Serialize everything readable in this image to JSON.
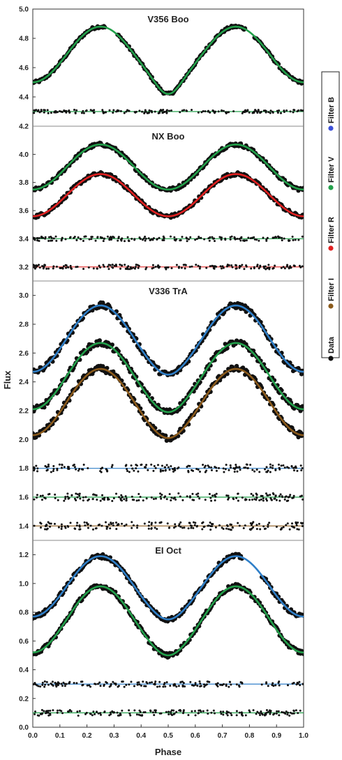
{
  "chart_data": {
    "type": "scatter",
    "xlabel": "Phase",
    "ylabel": "Flux",
    "xlim": [
      0.0,
      1.0
    ],
    "x_ticks": [
      "0.0",
      "0.1",
      "0.2",
      "0.3",
      "0.4",
      "0.5",
      "0.6",
      "0.7",
      "0.8",
      "0.9",
      "1.0"
    ],
    "grid": false,
    "legend": {
      "placement": "right, rotated vertical",
      "entries": [
        {
          "label": "Filter B",
          "color": "#3b4fd8"
        },
        {
          "label": "Filter V",
          "color": "#22a04a"
        },
        {
          "label": "Filter R",
          "color": "#e02020"
        },
        {
          "label": "Filter I",
          "color": "#8b5a1b"
        },
        {
          "label": "Data",
          "color": "#111111"
        }
      ]
    },
    "panels": [
      {
        "title": "V356 Boo",
        "ylim": [
          4.2,
          5.0
        ],
        "y_ticks": [
          "4.2",
          "4.4",
          "4.6",
          "4.8",
          "5.0"
        ],
        "series": [
          {
            "filter": "V",
            "kind": "light_curve",
            "mean": 4.69,
            "amplitude": 0.19,
            "primary_depth": 0.08,
            "color": "#22a04a",
            "gaps": [
              [
                0.27,
                0.31
              ],
              [
                0.785,
                0.815
              ]
            ]
          },
          {
            "filter": "V",
            "kind": "residual",
            "mean": 4.3,
            "color": "#22a04a"
          }
        ]
      },
      {
        "title": "NX Boo",
        "ylim": [
          3.1,
          4.2
        ],
        "y_ticks": [
          "3.2",
          "3.4",
          "3.6",
          "3.8",
          "4.0"
        ],
        "series": [
          {
            "filter": "V",
            "kind": "light_curve",
            "mean": 3.91,
            "amplitude": 0.16,
            "primary_depth": 0.0,
            "color": "#22a04a"
          },
          {
            "filter": "R",
            "kind": "light_curve",
            "mean": 3.71,
            "amplitude": 0.15,
            "primary_depth": 0.0,
            "color": "#e02020"
          },
          {
            "filter": "V",
            "kind": "residual",
            "mean": 3.4,
            "color": "#22a04a"
          },
          {
            "filter": "R",
            "kind": "residual",
            "mean": 3.2,
            "color": "#e02020"
          }
        ]
      },
      {
        "title": "V336 TrA",
        "ylim": [
          1.3,
          3.1
        ],
        "y_ticks": [
          "1.4",
          "1.6",
          "1.8",
          "2.0",
          "2.2",
          "2.4",
          "2.6",
          "2.8",
          "3.0"
        ],
        "series": [
          {
            "filter": "B",
            "kind": "light_curve",
            "mean": 2.7,
            "amplitude": 0.23,
            "primary_depth": 0.02,
            "color": "#2f7fc8"
          },
          {
            "filter": "V",
            "kind": "light_curve",
            "mean": 2.44,
            "amplitude": 0.23,
            "primary_depth": 0.02,
            "color": "#22a04a"
          },
          {
            "filter": "I",
            "kind": "light_curve",
            "mean": 2.26,
            "amplitude": 0.23,
            "primary_depth": 0.02,
            "color": "#8b5a1b"
          },
          {
            "filter": "B",
            "kind": "residual",
            "mean": 1.8,
            "color": "#2f7fc8"
          },
          {
            "filter": "V",
            "kind": "residual",
            "mean": 1.6,
            "color": "#22a04a"
          },
          {
            "filter": "I",
            "kind": "residual",
            "mean": 1.4,
            "color": "#8b5a1b"
          }
        ]
      },
      {
        "title": "EI Oct",
        "ylim": [
          0.0,
          1.3
        ],
        "y_ticks": [
          "0.0",
          "0.2",
          "0.4",
          "0.6",
          "0.8",
          "1.0",
          "1.2"
        ],
        "series": [
          {
            "filter": "B",
            "kind": "light_curve",
            "mean": 0.98,
            "amplitude": 0.21,
            "primary_depth": 0.02,
            "color": "#2f7fc8",
            "gaps": [
              [
                0.775,
                0.845
              ]
            ]
          },
          {
            "filter": "V",
            "kind": "light_curve",
            "mean": 0.75,
            "amplitude": 0.23,
            "primary_depth": 0.02,
            "color": "#22a04a"
          },
          {
            "filter": "B",
            "kind": "residual",
            "mean": 0.3,
            "color": "#2f7fc8",
            "gaps": [
              [
                0.775,
                0.845
              ]
            ]
          },
          {
            "filter": "V",
            "kind": "residual",
            "mean": 0.1,
            "color": "#22a04a"
          }
        ]
      }
    ]
  }
}
